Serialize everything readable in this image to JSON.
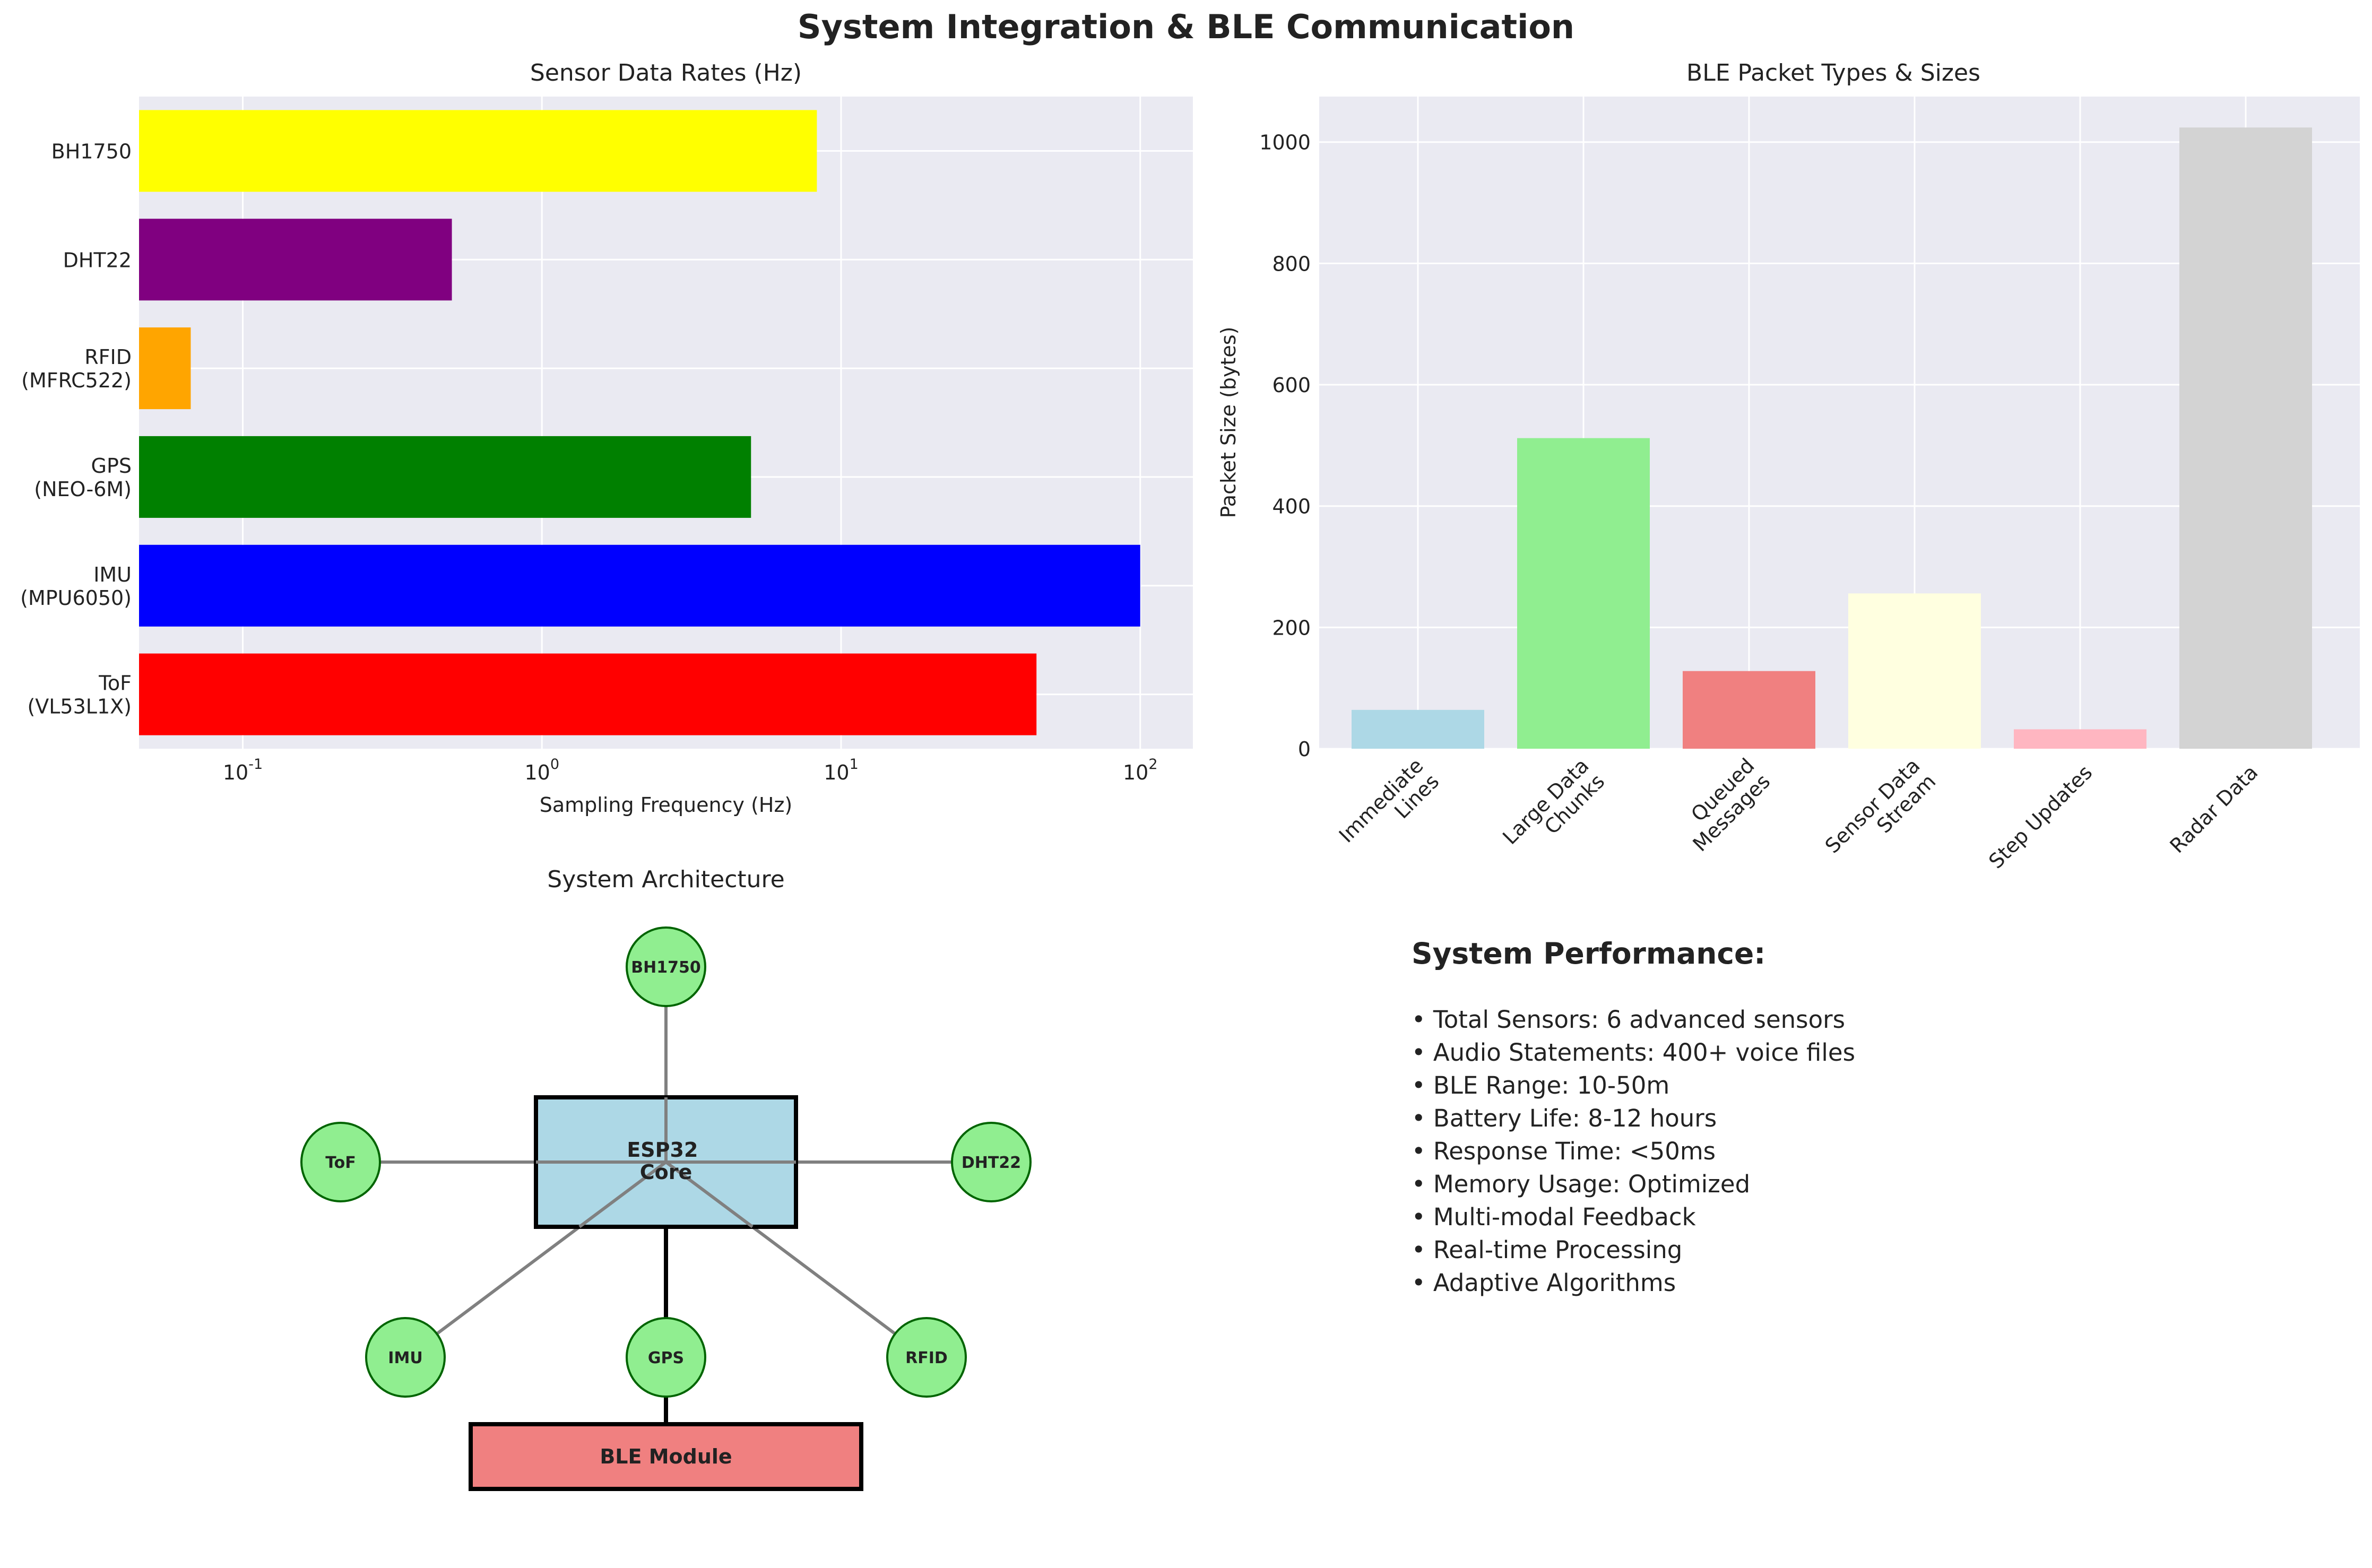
{
  "figure_title": "System Integration & BLE Communication",
  "chart_data": [
    {
      "type": "bar",
      "orientation": "horizontal",
      "title": "Sensor Data Rates (Hz)",
      "xlabel": "Sampling Frequency (Hz)",
      "ylabel": "",
      "xscale": "log",
      "xlim": [
        0.045,
        150
      ],
      "xticks": [
        0.1,
        1,
        10,
        100
      ],
      "grid": true,
      "categories": [
        "ToF\n(VL53L1X)",
        "IMU\n(MPU6050)",
        "GPS\n(NEO-6M)",
        "RFID\n(MFRC522)",
        "DHT22",
        "BH1750"
      ],
      "values": [
        45,
        100,
        5,
        0.067,
        0.5,
        8.3
      ],
      "colors": [
        "#ff0000",
        "#0000ff",
        "#008000",
        "#ffa500",
        "#800080",
        "#ffff00"
      ]
    },
    {
      "type": "bar",
      "title": "BLE Packet Types & Sizes",
      "xlabel": "",
      "ylabel": "Packet Size (bytes)",
      "ylim": [
        0,
        1075
      ],
      "yticks": [
        0,
        200,
        400,
        600,
        800,
        1000
      ],
      "grid": true,
      "categories": [
        "Immediate\nLines",
        "Large Data\nChunks",
        "Queued\nMessages",
        "Sensor Data\nStream",
        "Step Updates",
        "Radar Data"
      ],
      "values": [
        64,
        512,
        128,
        256,
        32,
        1024
      ],
      "colors": [
        "#add8e6",
        "#90ee90",
        "#f08080",
        "#ffffe0",
        "#ffb6c1",
        "#d3d3d3"
      ]
    }
  ],
  "architecture": {
    "title": "System Architecture",
    "core_label": "ESP32\nCore",
    "ble_label": "BLE Module",
    "core_color": "#add8e6",
    "ble_color": "#f08080",
    "sensor_color": "#90ee90",
    "sensors": [
      "BH1750",
      "ToF",
      "DHT22",
      "IMU",
      "GPS",
      "RFID"
    ]
  },
  "performance": {
    "title": "System Performance:",
    "items": [
      "• Total Sensors: 6 advanced sensors",
      "• Audio Statements: 400+ voice files",
      "• BLE Range: 10-50m",
      "• Battery Life: 8-12 hours",
      "• Response Time: <50ms",
      "• Memory Usage: Optimized",
      "• Multi-modal Feedback",
      "• Real-time Processing",
      "• Adaptive Algorithms"
    ]
  }
}
